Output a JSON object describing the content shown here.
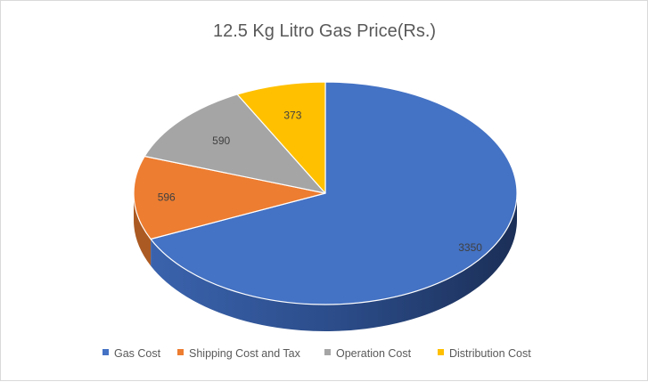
{
  "chart_data": {
    "type": "pie",
    "subtype": "3d-pie",
    "title": "12.5 Kg Litro Gas Price(Rs.)",
    "categories": [
      "Gas Cost",
      "Shipping Cost and Tax",
      "Operation Cost",
      "Distribution Cost"
    ],
    "values": [
      3350,
      596,
      590,
      373
    ],
    "colors": [
      "#4472c4",
      "#ed7d31",
      "#a5a5a5",
      "#ffc000"
    ],
    "data_labels": [
      "3350",
      "596",
      "590",
      "373"
    ],
    "legend_position": "bottom"
  }
}
